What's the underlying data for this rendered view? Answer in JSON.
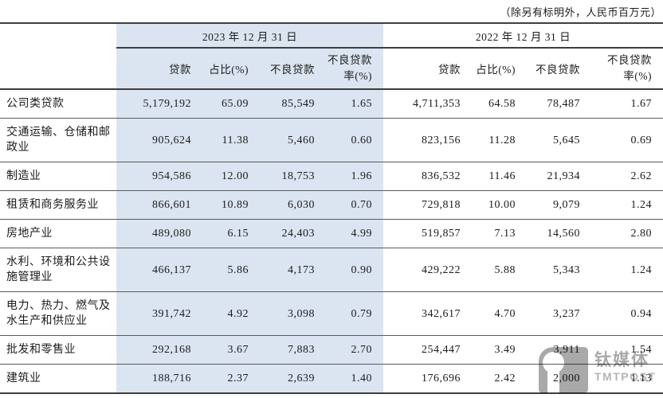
{
  "note": "（除另有标明外，人民币百万元）",
  "table": {
    "col_groups": [
      {
        "label": "2023 年 12 月 31 日"
      },
      {
        "label": "2022 年 12 月 31 日"
      }
    ],
    "sub_headers": [
      "贷款",
      "占比(%)",
      "不良贷款",
      "不良贷款\n率(%)"
    ],
    "rows": [
      {
        "label": "公司类贷款",
        "y2023": [
          "5,179,192",
          "65.09",
          "85,549",
          "1.65"
        ],
        "y2022": [
          "4,711,353",
          "64.58",
          "78,487",
          "1.67"
        ]
      },
      {
        "label": "交通运输、仓储和邮政业",
        "y2023": [
          "905,624",
          "11.38",
          "5,460",
          "0.60"
        ],
        "y2022": [
          "823,156",
          "11.28",
          "5,645",
          "0.69"
        ]
      },
      {
        "label": "制造业",
        "y2023": [
          "954,586",
          "12.00",
          "18,753",
          "1.96"
        ],
        "y2022": [
          "836,532",
          "11.46",
          "21,934",
          "2.62"
        ]
      },
      {
        "label": "租赁和商务服务业",
        "y2023": [
          "866,601",
          "10.89",
          "6,030",
          "0.70"
        ],
        "y2022": [
          "729,818",
          "10.00",
          "9,079",
          "1.24"
        ]
      },
      {
        "label": "房地产业",
        "y2023": [
          "489,080",
          "6.15",
          "24,403",
          "4.99"
        ],
        "y2022": [
          "519,857",
          "7.13",
          "14,560",
          "2.80"
        ]
      },
      {
        "label": "水利、环境和公共设施管理业",
        "y2023": [
          "466,137",
          "5.86",
          "4,173",
          "0.90"
        ],
        "y2022": [
          "429,222",
          "5.88",
          "5,343",
          "1.24"
        ]
      },
      {
        "label": "电力、热力、燃气及水生产和供应业",
        "y2023": [
          "391,742",
          "4.92",
          "3,098",
          "0.79"
        ],
        "y2022": [
          "342,617",
          "4.70",
          "3,237",
          "0.94"
        ]
      },
      {
        "label": "批发和零售业",
        "y2023": [
          "292,168",
          "3.67",
          "7,883",
          "2.70"
        ],
        "y2022": [
          "254,447",
          "3.49",
          "3,911",
          "1.54"
        ]
      },
      {
        "label": "建筑业",
        "y2023": [
          "188,716",
          "2.37",
          "2,639",
          "1.40"
        ],
        "y2022": [
          "176,696",
          "2.42",
          "2,000",
          "1.13"
        ]
      }
    ]
  },
  "watermark": {
    "cn": "钛媒体",
    "en": "TMTPOST"
  },
  "colors": {
    "shade_2023": "#dbe5f1",
    "line_major": "#3e3e3e",
    "line_row": "#5a5a5a",
    "text": "#1b1b1b",
    "watermark_gray": "#a9a9a9"
  }
}
